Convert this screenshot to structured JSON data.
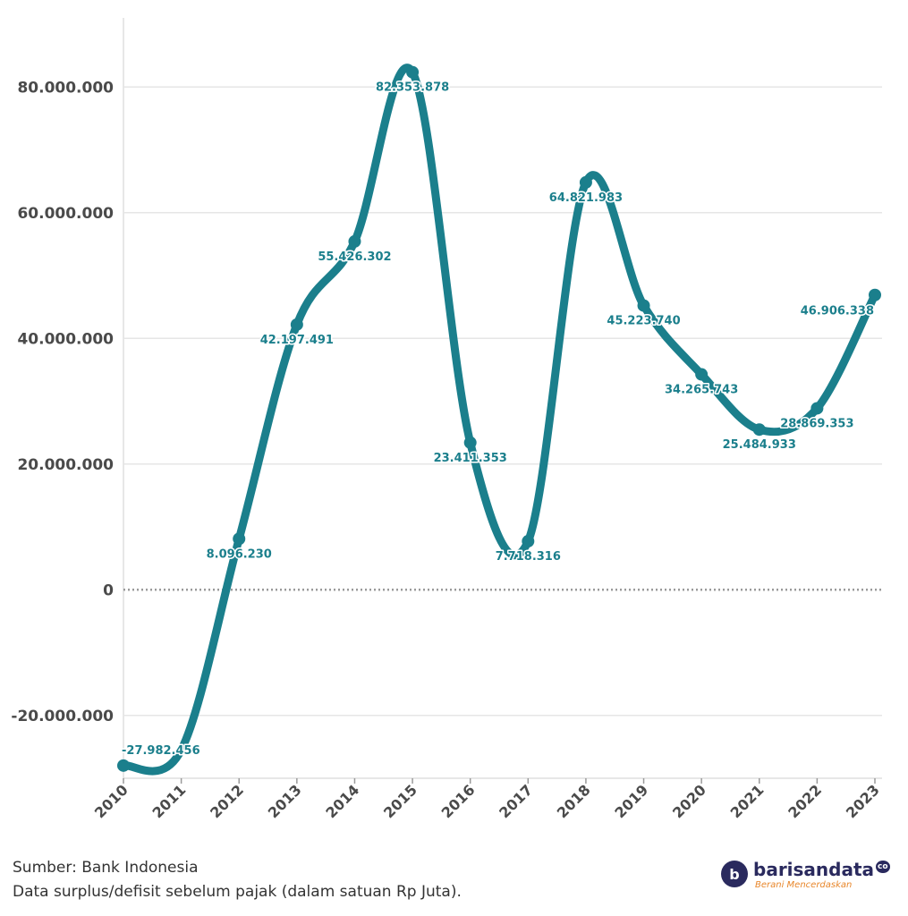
{
  "chart_data": {
    "type": "line",
    "title": "",
    "xlabel": "",
    "ylabel": "",
    "categories": [
      "2010",
      "2011",
      "2012",
      "2013",
      "2014",
      "2015",
      "2016",
      "2017",
      "2018",
      "2019",
      "2020",
      "2021",
      "2022",
      "2023"
    ],
    "series": [
      {
        "name": "",
        "color": "#1b7f8c",
        "values": [
          -27982456,
          -25500000,
          8096230,
          42197491,
          55426302,
          82353878,
          23411353,
          7718316,
          64821983,
          45223740,
          34265743,
          25484933,
          28869353,
          46906338
        ],
        "labels": [
          "-27.982.456",
          "",
          "8.096.230",
          "42.197.491",
          "55.426.302",
          "82.353.878",
          "23.411.353",
          "7.718.316",
          "64.821.983",
          "45.223.740",
          "34.265.743",
          "25.484.933",
          "28.869.353",
          "46.906.338"
        ]
      }
    ],
    "yticks": [
      -20000000,
      0,
      20000000,
      40000000,
      60000000,
      80000000
    ],
    "ytick_labels": [
      "-20.000.000",
      "0",
      "20.000.000",
      "40.000.000",
      "60.000.000",
      "80.000.000"
    ],
    "ylim": [
      -30000000,
      91000000
    ],
    "grid": true
  },
  "footer": {
    "source": "Sumber: Bank Indonesia",
    "note": "Data surplus/defisit sebelum pajak (dalam satuan Rp Juta)."
  },
  "logo": {
    "name": "barisandata",
    "tld": "co",
    "tagline": "Berani Mencerdaskan",
    "mark": "b"
  }
}
